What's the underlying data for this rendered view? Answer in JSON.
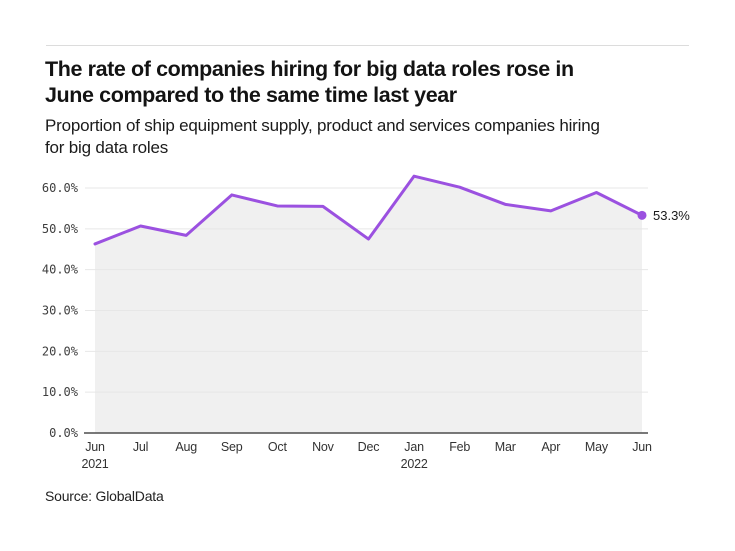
{
  "header": {
    "title_lines": [
      "The rate of companies hiring for big data roles rose in",
      "June compared to the same time last year"
    ],
    "subtitle_lines": [
      "Proportion of ship equipment supply, product and services companies hiring",
      "for big data roles"
    ]
  },
  "chart_data": {
    "type": "area",
    "title": "The rate of companies hiring for big data roles rose in June compared to the same time last year",
    "subtitle": "Proportion of ship equipment supply, product and services companies hiring for big data roles",
    "x": [
      "Jun",
      "Jul",
      "Aug",
      "Sep",
      "Oct",
      "Nov",
      "Dec",
      "Jan",
      "Feb",
      "Mar",
      "Apr",
      "May",
      "Jun"
    ],
    "year_labels": [
      {
        "index": 0,
        "label": "2021"
      },
      {
        "index": 7,
        "label": "2022"
      }
    ],
    "values": [
      46.3,
      50.7,
      48.4,
      58.3,
      55.6,
      55.5,
      47.5,
      62.9,
      60.2,
      56.0,
      54.4,
      58.9,
      53.3
    ],
    "unit": "%",
    "y_ticks": [
      "0.0%",
      "10.0%",
      "20.0%",
      "30.0%",
      "40.0%",
      "50.0%",
      "60.0%"
    ],
    "y_tick_values": [
      0,
      10,
      20,
      30,
      40,
      50,
      60
    ],
    "ylim": [
      0,
      65
    ],
    "grid": true,
    "legend_position": "none",
    "end_label": "53.3%",
    "colors": {
      "line": "#9b51e0",
      "marker": "#9b51e0",
      "area_fill": "#f0f0f0",
      "grid_line": "#e7e7e7",
      "axis_line": "#4d4d4d",
      "tick_text": "#3e3e3e"
    }
  },
  "footer": {
    "source": "Source: GlobalData"
  }
}
